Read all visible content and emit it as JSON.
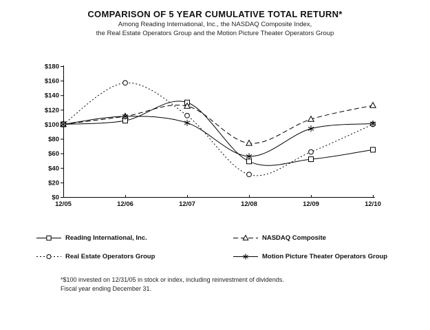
{
  "header": {
    "title": "COMPARISON OF 5 YEAR CUMULATIVE TOTAL RETURN*",
    "subtitle_line1": "Among Reading International, Inc., the NASDAQ Composite Index,",
    "subtitle_line2": "the Real Estate Operators Group and the Motion Picture Theater Operators Group"
  },
  "colors": {
    "line": "#000000",
    "background": "#ffffff"
  },
  "chart_data": {
    "type": "line",
    "title": "COMPARISON OF 5 YEAR CUMULATIVE TOTAL RETURN*",
    "xlabel": "",
    "ylabel": "",
    "categories": [
      "12/05",
      "12/06",
      "12/07",
      "12/08",
      "12/09",
      "12/10"
    ],
    "series": [
      {
        "name": "Reading International, Inc.",
        "marker": "square",
        "line_style": "solid",
        "values": [
          100,
          105,
          130,
          49,
          52,
          65
        ]
      },
      {
        "name": "NASDAQ Composite",
        "marker": "triangle",
        "line_style": "dashed",
        "values": [
          100,
          111,
          125,
          74,
          107,
          126
        ]
      },
      {
        "name": "Real Estate Operators Group",
        "marker": "circle",
        "line_style": "dotted",
        "values": [
          100,
          157,
          112,
          31,
          62,
          100
        ]
      },
      {
        "name": "Motion Picture Theater Operators Group",
        "marker": "asterisk",
        "line_style": "solid",
        "values": [
          100,
          111,
          102,
          56,
          94,
          101
        ]
      }
    ],
    "ylim": [
      0,
      180
    ],
    "ytick_step": 20,
    "ytick_labels": [
      "$0",
      "$20",
      "$40",
      "$60",
      "$80",
      "$100",
      "$120",
      "$140",
      "$160",
      "$180"
    ],
    "grid": false,
    "legend_position": "below",
    "smooth_lines": true
  },
  "footnote": {
    "line1": "*$100 invested on 12/31/05 in stock or index, including reinvestment of dividends.",
    "line2": "Fiscal year ending December 31."
  }
}
